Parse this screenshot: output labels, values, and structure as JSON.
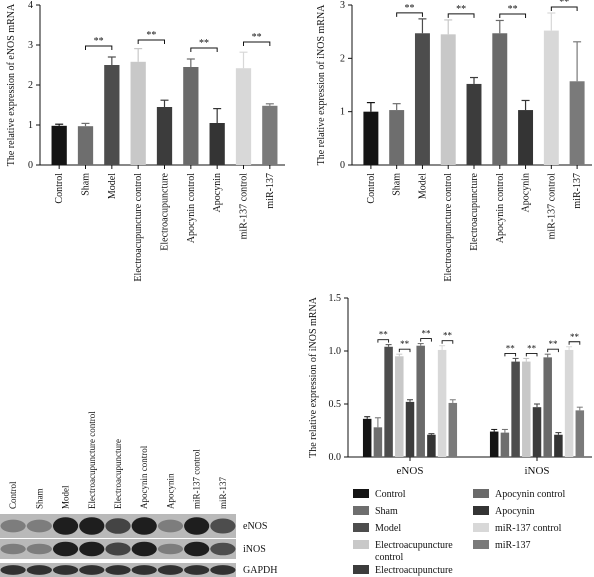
{
  "colors": {
    "Control": "#141414",
    "Sham": "#6e6e6e",
    "Model": "#4d4d4d",
    "Electroacupuncture control": "#c8c8c8",
    "Electroacupuncture": "#3c3c3c",
    "Apocynin control": "#6a6a6a",
    "Apocynin": "#343434",
    "miR-137 control": "#d8d8d8",
    "miR-137": "#7a7a7a"
  },
  "chart_data": [
    {
      "id": "A",
      "type": "bar",
      "ylabel": "The relative expression of eNOS mRNA",
      "ylim": [
        0,
        4
      ],
      "yticks": [
        0,
        1,
        2,
        3,
        4
      ],
      "categories": [
        "Control",
        "Sham",
        "Model",
        "Electroacupuncture control",
        "Electroacupuncture",
        "Apocynin control",
        "Apocynin",
        "miR-137 control",
        "miR-137"
      ],
      "values": [
        0.98,
        0.97,
        2.5,
        2.58,
        1.45,
        2.45,
        1.05,
        2.42,
        1.48
      ],
      "errors": [
        0.04,
        0.07,
        0.2,
        0.33,
        0.17,
        0.2,
        0.36,
        0.4,
        0.05
      ],
      "significance": [
        {
          "from": 1,
          "to": 2,
          "label": "**"
        },
        {
          "from": 3,
          "to": 4,
          "label": "**"
        },
        {
          "from": 5,
          "to": 6,
          "label": "**"
        },
        {
          "from": 7,
          "to": 8,
          "label": "**"
        }
      ]
    },
    {
      "id": "B",
      "type": "bar",
      "ylabel": "The relative expression of iNOS mRNA",
      "ylim": [
        0,
        3
      ],
      "yticks": [
        0,
        1,
        2,
        3
      ],
      "categories": [
        "Control",
        "Sham",
        "Model",
        "Electroacupuncture control",
        "Electroacupuncture",
        "Apocynin control",
        "Apocynin",
        "miR-137 control",
        "miR-137"
      ],
      "values": [
        1.0,
        1.03,
        2.47,
        2.45,
        1.52,
        2.47,
        1.03,
        2.52,
        1.57
      ],
      "errors": [
        0.17,
        0.12,
        0.27,
        0.27,
        0.12,
        0.24,
        0.18,
        0.33,
        0.74
      ],
      "significance": [
        {
          "from": 1,
          "to": 2,
          "label": "**"
        },
        {
          "from": 3,
          "to": 4,
          "label": "**"
        },
        {
          "from": 5,
          "to": 6,
          "label": "**"
        },
        {
          "from": 7,
          "to": 8,
          "label": "**"
        }
      ]
    },
    {
      "id": "D",
      "type": "bar",
      "ylabel": "The relative expression of iNOS mRNA",
      "ylim": [
        0,
        1.5
      ],
      "yticks": [
        "0.0",
        "0.5",
        "1.0",
        "1.5"
      ],
      "categories": [
        "eNOS",
        "iNOS"
      ],
      "series": [
        {
          "name": "Control",
          "values": [
            0.36,
            0.24
          ],
          "errors": [
            0.02,
            0.02
          ]
        },
        {
          "name": "Sham",
          "values": [
            0.28,
            0.23
          ],
          "errors": [
            0.09,
            0.03
          ]
        },
        {
          "name": "Model",
          "values": [
            1.04,
            0.9
          ],
          "errors": [
            0.02,
            0.03
          ]
        },
        {
          "name": "Electroacupuncture control",
          "values": [
            0.95,
            0.9
          ],
          "errors": [
            0.02,
            0.03
          ]
        },
        {
          "name": "Electroacupuncture",
          "values": [
            0.52,
            0.47
          ],
          "errors": [
            0.02,
            0.03
          ]
        },
        {
          "name": "Apocynin control",
          "values": [
            1.05,
            0.94
          ],
          "errors": [
            0.02,
            0.03
          ]
        },
        {
          "name": "Apocynin",
          "values": [
            0.21,
            0.21
          ],
          "errors": [
            0.01,
            0.02
          ]
        },
        {
          "name": "miR-137 control",
          "values": [
            1.01,
            1.01
          ],
          "errors": [
            0.04,
            0.03
          ]
        },
        {
          "name": "miR-137",
          "values": [
            0.51,
            0.44
          ],
          "errors": [
            0.03,
            0.03
          ]
        }
      ],
      "significance_pairs": [
        [
          1,
          2
        ],
        [
          3,
          4
        ],
        [
          5,
          6
        ],
        [
          7,
          8
        ]
      ],
      "significance_label": "**",
      "legend": [
        "Control",
        "Sham",
        "Model",
        "Electroacupuncture control",
        "Electroacupuncture",
        "Apocynin control",
        "Apocynin",
        "miR-137 control",
        "miR-137"
      ],
      "legend_placement": "bottom"
    }
  ],
  "blot": {
    "lanes": [
      "Control",
      "Sham",
      "Model",
      "Electroacupuncture control",
      "Electroacupuncture",
      "Apocynin control",
      "Apocynin",
      "miR-137 control",
      "miR-137"
    ],
    "rows": [
      {
        "label": "eNOS",
        "intensity": [
          0.45,
          0.45,
          0.95,
          0.95,
          0.75,
          0.95,
          0.45,
          0.95,
          0.7
        ]
      },
      {
        "label": "iNOS",
        "intensity": [
          0.45,
          0.45,
          0.95,
          0.95,
          0.75,
          0.95,
          0.45,
          0.95,
          0.7
        ]
      },
      {
        "label": "GAPDH",
        "intensity": [
          0.85,
          0.85,
          0.85,
          0.85,
          0.85,
          0.85,
          0.85,
          0.85,
          0.85
        ]
      }
    ]
  }
}
